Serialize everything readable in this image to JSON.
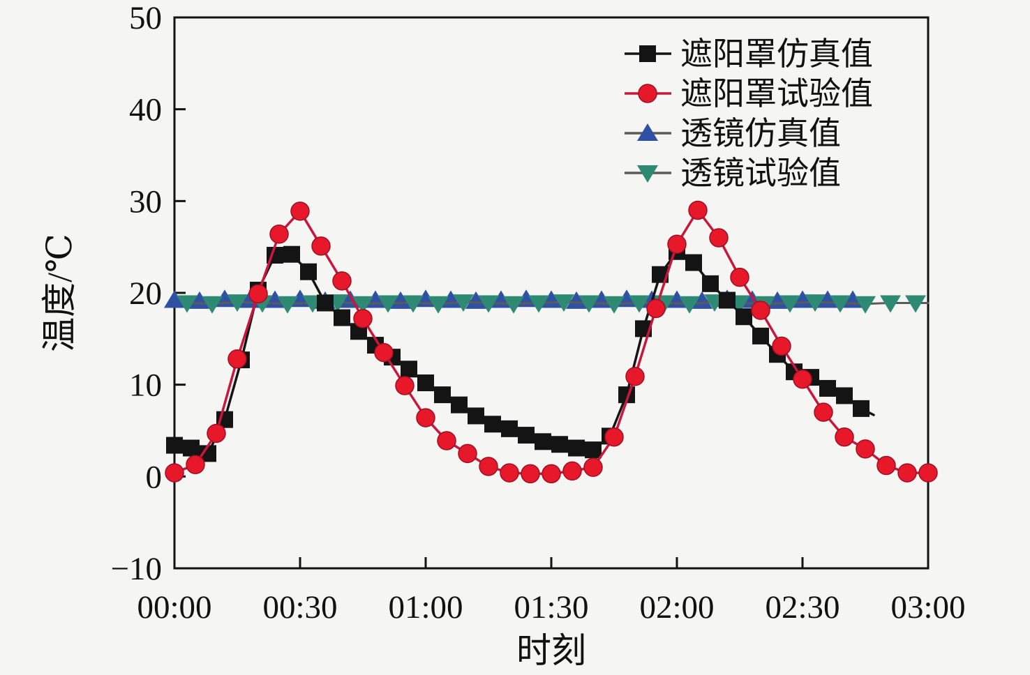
{
  "figure": {
    "background_color": "#f5f5f3",
    "axis_color": "#111111",
    "legend_position": "top-right-inside"
  },
  "chart_data": {
    "type": "line",
    "title": "",
    "xlabel": "时刻",
    "ylabel": "温度/℃",
    "grid": false,
    "xlim_minutes": [
      0,
      180
    ],
    "ylim": [
      -10,
      50
    ],
    "x_ticks": [
      {
        "minutes": 0,
        "label": "00:00"
      },
      {
        "minutes": 30,
        "label": "00:30"
      },
      {
        "minutes": 60,
        "label": "01:00"
      },
      {
        "minutes": 90,
        "label": "01:30"
      },
      {
        "minutes": 120,
        "label": "02:00"
      },
      {
        "minutes": 150,
        "label": "02:30"
      },
      {
        "minutes": 180,
        "label": "03:00"
      }
    ],
    "y_ticks": [
      {
        "value": 50,
        "label": "50"
      },
      {
        "value": 40,
        "label": "40"
      },
      {
        "value": 30,
        "label": "30"
      },
      {
        "value": 20,
        "label": "20"
      },
      {
        "value": 10,
        "label": "10"
      },
      {
        "value": 0,
        "label": "0"
      },
      {
        "value": -10,
        "label": "−10"
      }
    ],
    "series": [
      {
        "id": "lens-sim",
        "name": "透镜仿真值",
        "marker": "triangle-up",
        "marker_color": "#2e51a3",
        "line_color": "#5a5a5a",
        "line_width": 3,
        "points": [
          [
            0,
            19.2
          ],
          [
            6,
            19.1
          ],
          [
            12,
            19.3
          ],
          [
            18,
            19.2
          ],
          [
            24,
            19.2
          ],
          [
            30,
            19.3
          ],
          [
            36,
            19.1
          ],
          [
            42,
            19.2
          ],
          [
            48,
            19.2
          ],
          [
            54,
            19.1
          ],
          [
            60,
            19.3
          ],
          [
            66,
            19.2
          ],
          [
            72,
            19.1
          ],
          [
            78,
            19.2
          ],
          [
            84,
            19.3
          ],
          [
            90,
            19.2
          ],
          [
            96,
            19.1
          ],
          [
            102,
            19.2
          ],
          [
            108,
            19.3
          ],
          [
            114,
            19.2
          ],
          [
            120,
            19.2
          ],
          [
            126,
            19.1
          ],
          [
            132,
            19.3
          ],
          [
            138,
            19.2
          ],
          [
            144,
            19.1
          ],
          [
            150,
            19.2
          ],
          [
            156,
            19.2
          ],
          [
            162,
            19.2
          ]
        ]
      },
      {
        "id": "lens-test",
        "name": "透镜试验值",
        "marker": "triangle-down",
        "marker_color": "#2f8a74",
        "line_color": "#5a5a5a",
        "line_width": 3,
        "points": [
          [
            3,
            18.9
          ],
          [
            9,
            18.8
          ],
          [
            15,
            19.0
          ],
          [
            21,
            18.9
          ],
          [
            27,
            18.8
          ],
          [
            33,
            18.9
          ],
          [
            39,
            19.0
          ],
          [
            45,
            18.8
          ],
          [
            51,
            18.9
          ],
          [
            57,
            18.9
          ],
          [
            63,
            18.8
          ],
          [
            69,
            19.0
          ],
          [
            75,
            18.9
          ],
          [
            81,
            18.8
          ],
          [
            87,
            18.9
          ],
          [
            93,
            19.0
          ],
          [
            99,
            18.9
          ],
          [
            105,
            18.8
          ],
          [
            111,
            18.9
          ],
          [
            117,
            18.9
          ],
          [
            123,
            18.8
          ],
          [
            129,
            19.0
          ],
          [
            135,
            18.9
          ],
          [
            141,
            18.8
          ],
          [
            147,
            18.9
          ],
          [
            153,
            19.0
          ],
          [
            159,
            18.9
          ],
          [
            165,
            18.8
          ],
          [
            171,
            18.9
          ],
          [
            177,
            18.9
          ]
        ],
        "line_extend": [
          180,
          18.9
        ]
      },
      {
        "id": "sunshade-sim",
        "name": "遮阳罩仿真值",
        "marker": "square",
        "marker_color": "#141414",
        "line_color": "#141414",
        "line_width": 3.5,
        "points": [
          [
            0,
            3.4
          ],
          [
            4,
            3.1
          ],
          [
            8,
            2.5
          ],
          [
            12,
            6.2
          ],
          [
            16,
            12.7
          ],
          [
            20,
            20.3
          ],
          [
            24,
            24.1
          ],
          [
            28,
            24.2
          ],
          [
            32,
            22.3
          ],
          [
            36,
            18.9
          ],
          [
            40,
            17.3
          ],
          [
            44,
            15.8
          ],
          [
            48,
            14.3
          ],
          [
            52,
            13.0
          ],
          [
            56,
            11.7
          ],
          [
            60,
            10.2
          ],
          [
            64,
            8.9
          ],
          [
            68,
            7.8
          ],
          [
            72,
            6.6
          ],
          [
            76,
            5.7
          ],
          [
            80,
            5.2
          ],
          [
            84,
            4.5
          ],
          [
            88,
            3.8
          ],
          [
            92,
            3.5
          ],
          [
            96,
            3.1
          ],
          [
            100,
            2.9
          ],
          [
            104,
            4.4
          ],
          [
            108,
            8.9
          ],
          [
            112,
            16.1
          ],
          [
            116,
            22.0
          ],
          [
            120,
            24.5
          ],
          [
            124,
            23.3
          ],
          [
            128,
            21.0
          ],
          [
            132,
            19.2
          ],
          [
            136,
            17.4
          ],
          [
            140,
            15.3
          ],
          [
            144,
            13.3
          ],
          [
            148,
            11.4
          ],
          [
            152,
            10.8
          ],
          [
            156,
            9.6
          ],
          [
            160,
            8.8
          ],
          [
            164,
            7.4
          ]
        ],
        "line_extend": [
          167,
          6.7
        ]
      },
      {
        "id": "sunshade-test",
        "name": "遮阳罩试验值",
        "marker": "circle",
        "marker_color": "#e8182b",
        "line_color": "#c9163a",
        "line_width": 3.5,
        "points": [
          [
            0,
            0.4
          ],
          [
            5,
            1.3
          ],
          [
            10,
            4.7
          ],
          [
            15,
            12.8
          ],
          [
            20,
            19.9
          ],
          [
            25,
            26.4
          ],
          [
            30,
            28.9
          ],
          [
            35,
            25.1
          ],
          [
            40,
            21.3
          ],
          [
            45,
            17.2
          ],
          [
            50,
            13.5
          ],
          [
            55,
            9.9
          ],
          [
            60,
            6.4
          ],
          [
            65,
            3.9
          ],
          [
            70,
            2.5
          ],
          [
            75,
            1.1
          ],
          [
            80,
            0.4
          ],
          [
            85,
            0.3
          ],
          [
            90,
            0.3
          ],
          [
            95,
            0.6
          ],
          [
            100,
            1.0
          ],
          [
            105,
            4.3
          ],
          [
            110,
            10.9
          ],
          [
            115,
            18.3
          ],
          [
            120,
            25.3
          ],
          [
            125,
            29.0
          ],
          [
            130,
            26.0
          ],
          [
            135,
            21.7
          ],
          [
            140,
            18.1
          ],
          [
            145,
            14.2
          ],
          [
            150,
            10.6
          ],
          [
            155,
            7.0
          ],
          [
            160,
            4.3
          ],
          [
            165,
            3.0
          ],
          [
            170,
            1.2
          ],
          [
            175,
            0.4
          ],
          [
            180,
            0.4
          ]
        ]
      }
    ],
    "legend_order": [
      "sunshade-sim",
      "sunshade-test",
      "lens-sim",
      "lens-test"
    ]
  }
}
